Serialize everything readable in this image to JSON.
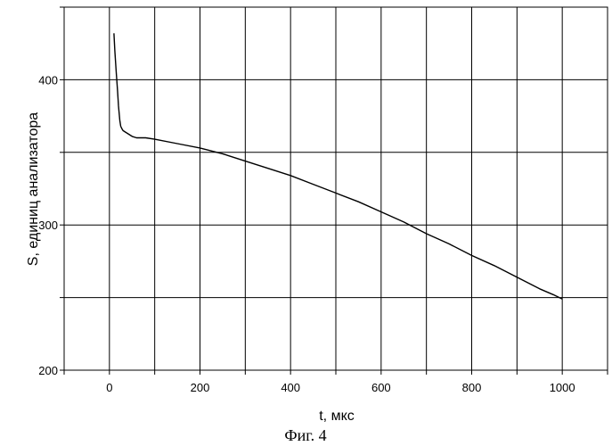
{
  "chart_data": {
    "type": "line",
    "title": "",
    "xlabel": "t, мкс",
    "ylabel": "S, единиц анализатора",
    "caption": "Фиг. 4",
    "xlim": [
      -100,
      1100
    ],
    "ylim": [
      200,
      450
    ],
    "x_ticks": [
      0,
      200,
      400,
      600,
      800,
      1000
    ],
    "x_tick_labels": [
      "0",
      "200",
      "400",
      "600",
      "800",
      "1000"
    ],
    "y_ticks": [
      200,
      300,
      400
    ],
    "y_tick_labels": [
      "200",
      "300",
      "400"
    ],
    "grid": true,
    "series": [
      {
        "color": "#000000",
        "x": [
          10,
          12,
          15,
          18,
          20,
          23,
          25,
          28,
          30,
          35,
          40,
          50,
          60,
          80,
          100,
          150,
          200,
          250,
          300,
          350,
          400,
          450,
          500,
          550,
          600,
          650,
          700,
          750,
          800,
          850,
          900,
          950,
          980,
          1000
        ],
        "y": [
          432,
          420,
          405,
          392,
          382,
          372,
          368,
          366,
          365,
          364,
          363,
          361,
          360,
          360,
          359,
          356,
          353,
          349,
          344,
          339,
          334,
          328,
          322,
          316,
          309,
          302,
          294,
          287,
          279,
          272,
          264,
          256,
          252,
          249
        ]
      }
    ]
  }
}
